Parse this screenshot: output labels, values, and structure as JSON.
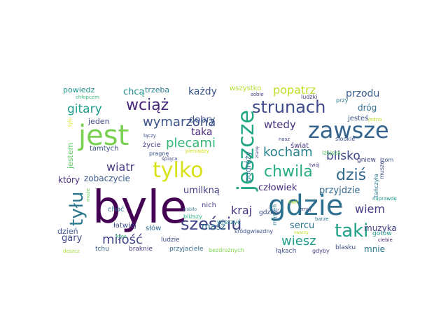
{
  "wordcloud": {
    "words": [
      {
        "text": "byle",
        "size": 64,
        "color": "#440154"
      },
      {
        "text": "gdzie",
        "size": 40,
        "color": "#2c6f8e"
      },
      {
        "text": "zawsze",
        "size": 32,
        "color": "#33638d"
      },
      {
        "text": "jest",
        "size": 40,
        "color": "#7ad151"
      },
      {
        "text": "jeszcze",
        "size": 32,
        "color": "#22a884"
      },
      {
        "text": "tylko",
        "size": 30,
        "color": "#d8e219"
      },
      {
        "text": "strunach",
        "size": 24,
        "color": "#3e4989"
      },
      {
        "text": "tyłu",
        "size": 26,
        "color": "#2a788e"
      },
      {
        "text": "sześciu",
        "size": 24,
        "color": "#414487"
      },
      {
        "text": "taki",
        "size": 26,
        "color": "#1fa188"
      },
      {
        "text": "wciąż",
        "size": 22,
        "color": "#482878"
      },
      {
        "text": "chwila",
        "size": 22,
        "color": "#29af7f"
      },
      {
        "text": "dziś",
        "size": 22,
        "color": "#31688e"
      },
      {
        "text": "kocham",
        "size": 18,
        "color": "#26828e"
      },
      {
        "text": "plecami",
        "size": 18,
        "color": "#35b779"
      },
      {
        "text": "wymarzona",
        "size": 18,
        "color": "#3b528b"
      },
      {
        "text": "miłość",
        "size": 18,
        "color": "#414487"
      },
      {
        "text": "wiesz",
        "size": 18,
        "color": "#1f9e89"
      },
      {
        "text": "wiem",
        "size": 16,
        "color": "#443983"
      },
      {
        "text": "gitary",
        "size": 17,
        "color": "#1f9a8a"
      },
      {
        "text": "blisko",
        "size": 17,
        "color": "#3e4a89"
      },
      {
        "text": "popatrz",
        "size": 16,
        "color": "#bddf26"
      },
      {
        "text": "kraj",
        "size": 16,
        "color": "#46337e"
      },
      {
        "text": "wiatr",
        "size": 16,
        "color": "#433e85"
      },
      {
        "text": "wtedy",
        "size": 15,
        "color": "#46327e"
      },
      {
        "text": "przodu",
        "size": 14,
        "color": "#38598c"
      },
      {
        "text": "każdy",
        "size": 14,
        "color": "#3a548c"
      },
      {
        "text": "taka",
        "size": 14,
        "color": "#482475"
      },
      {
        "text": "dobry",
        "size": 13,
        "color": "#3b518b"
      },
      {
        "text": "człowiek",
        "size": 13,
        "color": "#472d7b"
      },
      {
        "text": "przyjdzie",
        "size": 13,
        "color": "#31688e"
      },
      {
        "text": "umilkną",
        "size": 13,
        "color": "#423f85"
      },
      {
        "text": "sercu",
        "size": 13,
        "color": "#2c738e"
      },
      {
        "text": "masz",
        "size": 13,
        "color": "#2f6c8e"
      },
      {
        "text": "gary",
        "size": 13,
        "color": "#3f4788"
      },
      {
        "text": "muzyka",
        "size": 12,
        "color": "#424086"
      },
      {
        "text": "mnie",
        "size": 12,
        "color": "#2b758e"
      },
      {
        "text": "dróg",
        "size": 12,
        "color": "#2e6e8e"
      },
      {
        "text": "zobaczycie",
        "size": 12,
        "color": "#38598c"
      },
      {
        "text": "chcą",
        "size": 13,
        "color": "#228c8d"
      },
      {
        "text": "trzeba",
        "size": 11,
        "color": "#277f8e"
      },
      {
        "text": "powiedz",
        "size": 11,
        "color": "#20928c"
      },
      {
        "text": "jeden",
        "size": 11,
        "color": "#3f4889"
      },
      {
        "text": "który",
        "size": 12,
        "color": "#472c7a"
      },
      {
        "text": "jestem",
        "size": 11,
        "color": "#5ec962"
      },
      {
        "text": "dzień",
        "size": 11,
        "color": "#3b528b"
      },
      {
        "text": "podróży",
        "size": 11,
        "color": "#2d708e"
      },
      {
        "text": "życie",
        "size": 10,
        "color": "#453781"
      },
      {
        "text": "tamtych",
        "size": 10,
        "color": "#3d4e8a"
      },
      {
        "text": "wszystko",
        "size": 10,
        "color": "#b5de2b"
      },
      {
        "text": "jesteś",
        "size": 10,
        "color": "#3b528b"
      },
      {
        "text": "świat",
        "size": 10,
        "color": "#453882"
      },
      {
        "text": "nich",
        "size": 10,
        "color": "#433e85"
      },
      {
        "text": "choć",
        "size": 10,
        "color": "#2e6f8e"
      },
      {
        "text": "łatwiej",
        "size": 10,
        "color": "#3d4d8a"
      },
      {
        "text": "słów",
        "size": 10,
        "color": "#31688e"
      },
      {
        "text": "ludzie",
        "size": 9,
        "color": "#3e4c8a"
      },
      {
        "text": "gotów",
        "size": 9,
        "color": "#20938c"
      },
      {
        "text": "blasku",
        "size": 9,
        "color": "#3c4f8a"
      },
      {
        "text": "gdzieś",
        "size": 9,
        "color": "#3c508b"
      },
      {
        "text": "gniew",
        "size": 9,
        "color": "#414487"
      },
      {
        "text": "łzom",
        "size": 8,
        "color": "#3a548c"
      },
      {
        "text": "wierzyć",
        "size": 9,
        "color": "#25848e"
      },
      {
        "text": "tchu",
        "size": 9,
        "color": "#33638d"
      },
      {
        "text": "braknie",
        "size": 9,
        "color": "#433d84"
      },
      {
        "text": "przyjaciele",
        "size": 9,
        "color": "#2f6b8e"
      },
      {
        "text": "łąkach",
        "size": 9,
        "color": "#3c4f8a"
      },
      {
        "text": "gdyby",
        "size": 8,
        "color": "#424186"
      },
      {
        "text": "marzeń",
        "size": 8,
        "color": "#2c738e"
      },
      {
        "text": "bliższy",
        "size": 8,
        "color": "#26ad81"
      },
      {
        "text": "muszę",
        "size": 8,
        "color": "#3f4889"
      },
      {
        "text": "tańczyła",
        "size": 8,
        "color": "#2a768e"
      },
      {
        "text": "słodkie",
        "size": 8,
        "color": "#3b528b"
      },
      {
        "text": "pragnę",
        "size": 8,
        "color": "#3b528b"
      },
      {
        "text": "zmyj",
        "size": 7,
        "color": "#3e4a89"
      },
      {
        "text": "twój",
        "size": 7,
        "color": "#433e85"
      },
      {
        "text": "śródgwiezdny",
        "size": 8,
        "color": "#3b528b"
      },
      {
        "text": "bezdrożnych",
        "size": 8,
        "color": "#7fd34e"
      },
      {
        "text": "ciebie",
        "size": 7,
        "color": "#482173"
      },
      {
        "text": "barze",
        "size": 7,
        "color": "#2c728e"
      },
      {
        "text": "naprawdę",
        "size": 7,
        "color": "#1f968b"
      },
      {
        "text": "deszcz",
        "size": 7,
        "color": "#a5db36"
      },
      {
        "text": "może",
        "size": 7,
        "color": "#70cf57"
      },
      {
        "text": "kres",
        "size": 7,
        "color": "#35b779"
      },
      {
        "text": "chłopcem",
        "size": 7,
        "color": "#38b977"
      },
      {
        "text": "łączy",
        "size": 7,
        "color": "#3b528b"
      },
      {
        "text": "lżejsza",
        "size": 8,
        "color": "#56c667"
      },
      {
        "text": "ludzki",
        "size": 8,
        "color": "#453882"
      },
      {
        "text": "przy",
        "size": 8,
        "color": "#2a788e"
      },
      {
        "text": "sobie",
        "size": 7,
        "color": "#424086"
      },
      {
        "text": "śpiąca",
        "size": 7,
        "color": "#3e4989"
      },
      {
        "text": "jedno",
        "size": 7,
        "color": "#b8de29"
      },
      {
        "text": "tylu",
        "size": 7,
        "color": "#d8e219"
      },
      {
        "text": "pieniądzy",
        "size": 7,
        "color": "#d5e21a"
      },
      {
        "text": "świt",
        "size": 7,
        "color": "#addc30"
      },
      {
        "text": "zranę",
        "size": 6,
        "color": "#443983"
      },
      {
        "text": "zrobiło",
        "size": 6,
        "color": "#2c718e"
      },
      {
        "text": "swarzy",
        "size": 6,
        "color": "#c2df23"
      },
      {
        "text": "nasz",
        "size": 7,
        "color": "#3f4788"
      }
    ]
  }
}
